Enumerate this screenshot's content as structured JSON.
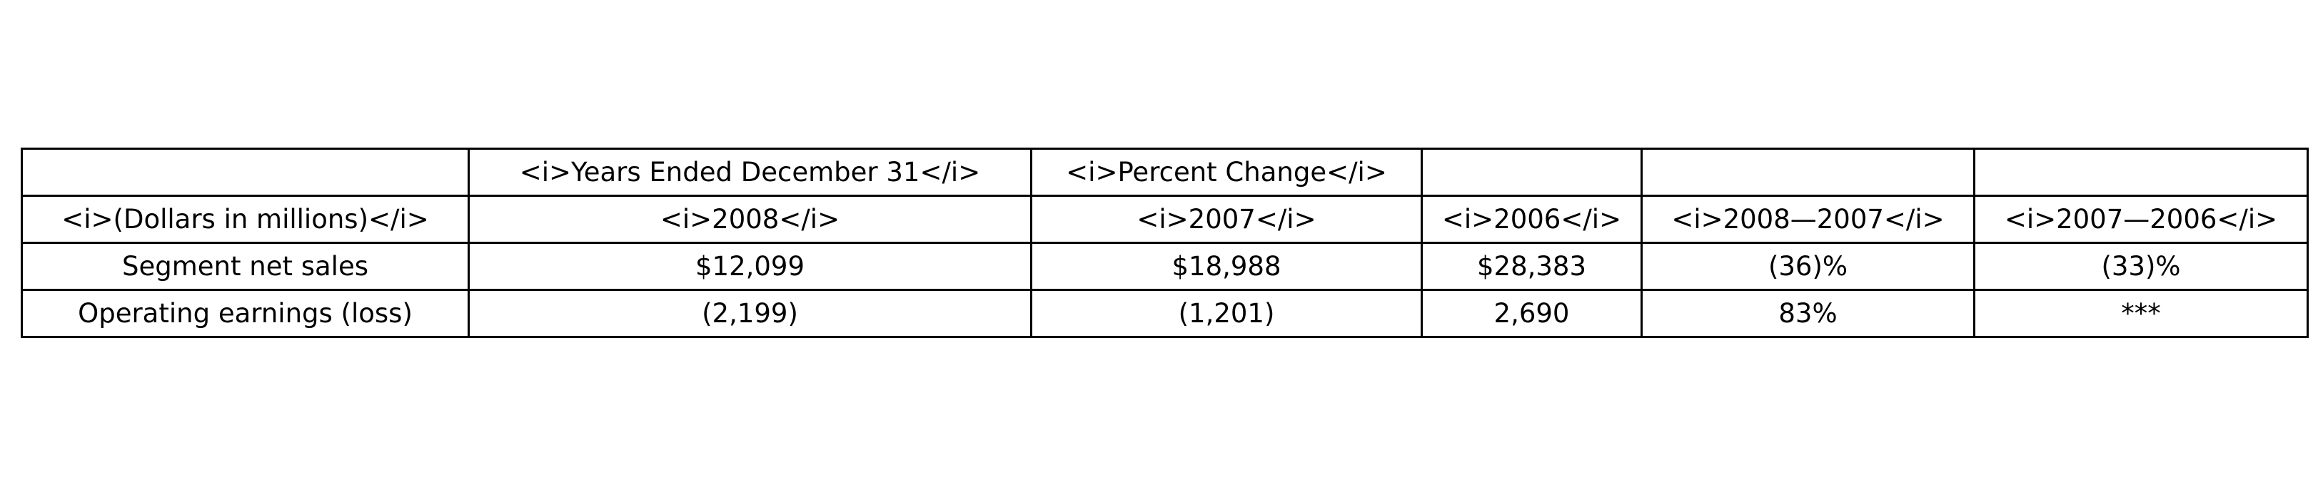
{
  "chart_data": {
    "type": "table",
    "rows": [
      [
        "",
        "<i>Years Ended December 31</i>",
        "<i>Percent Change</i>",
        "",
        "",
        ""
      ],
      [
        "<i>(Dollars in millions)</i>",
        "<i>2008</i>",
        "<i>2007</i>",
        "<i>2006</i>",
        "<i>2008—2007</i>",
        "<i>2007—2006</i>"
      ],
      [
        "Segment net sales",
        "$12,099",
        "$18,988",
        "$28,383",
        "(36)%",
        "(33)%"
      ],
      [
        "Operating earnings (loss)",
        "(2,199)",
        "(1,201)",
        "2,690",
        "83%",
        "***"
      ]
    ]
  }
}
